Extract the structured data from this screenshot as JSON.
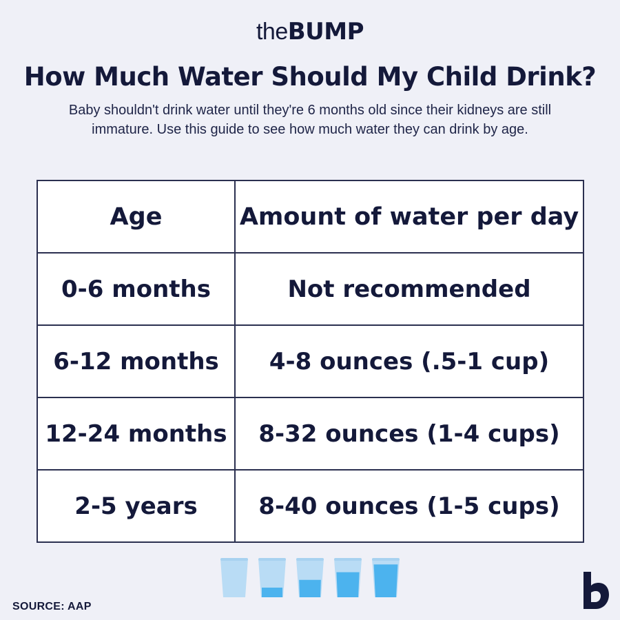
{
  "brand": {
    "prefix": "the",
    "name": "BUMP"
  },
  "title": "How Much Water Should My Child Drink?",
  "subtitle": "Baby shouldn't drink water until they're 6 months old since their kidneys are still immature. Use this guide to see how much water they can drink by age.",
  "table": {
    "headers": [
      "Age",
      "Amount of water per day"
    ],
    "rows": [
      [
        "0-6 months",
        "Not recommended"
      ],
      [
        "6-12 months",
        "4-8 ounces (.5-1 cup)"
      ],
      [
        "12-24 months",
        "8-32 ounces (1-4 cups)"
      ],
      [
        "2-5 years",
        "8-40 ounces (1-5 cups)"
      ]
    ]
  },
  "glasses": {
    "icon": "water-glass-icon",
    "fill_levels": [
      0,
      0.25,
      0.45,
      0.65,
      0.85
    ],
    "colors": {
      "empty": "#b9dcf5",
      "water": "#4cb3ee",
      "rim": "#a8d2f0"
    }
  },
  "source": "SOURCE: AAP",
  "logo_icon": "bump-b-logo-icon",
  "colors": {
    "background": "#eff0f7",
    "text": "#14193a",
    "table_border": "#2a2f4f",
    "table_bg": "#ffffff"
  }
}
